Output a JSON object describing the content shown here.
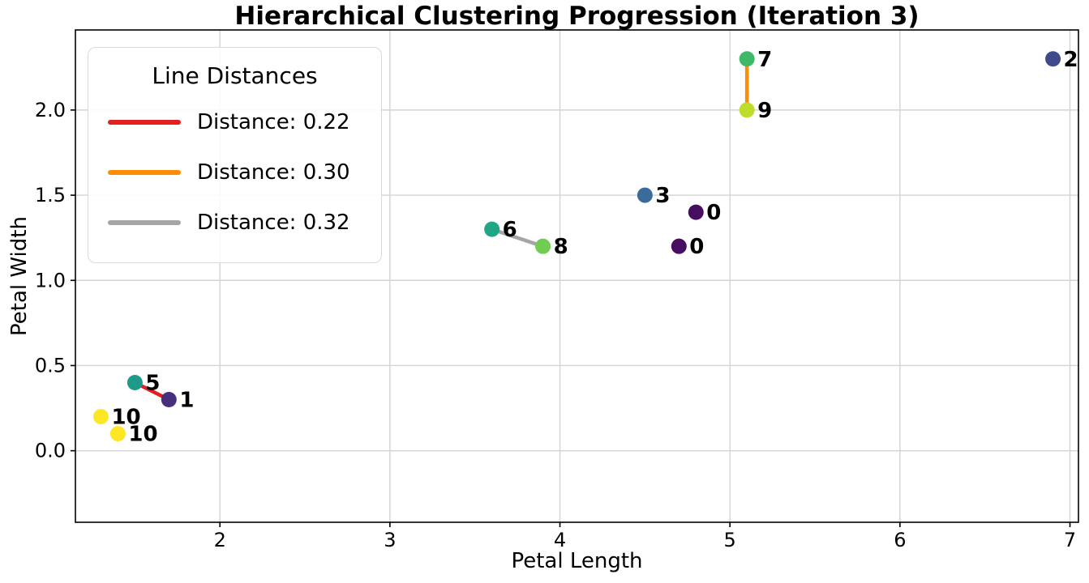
{
  "chart_data": {
    "type": "scatter",
    "title": "Hierarchical Clustering Progression (Iteration 3)",
    "xlabel": "Petal Length",
    "ylabel": "Petal Width",
    "xlim": [
      1.15,
      7.05
    ],
    "ylim": [
      -0.42,
      2.47
    ],
    "grid": true,
    "grid_color": "#d3d3d3",
    "axis_color": "#000000",
    "xticks": [
      {
        "value": 2,
        "label": "2"
      },
      {
        "value": 3,
        "label": "3"
      },
      {
        "value": 4,
        "label": "4"
      },
      {
        "value": 5,
        "label": "5"
      },
      {
        "value": 6,
        "label": "6"
      },
      {
        "value": 7,
        "label": "7"
      }
    ],
    "yticks": [
      {
        "value": 0.0,
        "label": "0.0"
      },
      {
        "value": 0.5,
        "label": "0.5"
      },
      {
        "value": 1.0,
        "label": "1.0"
      },
      {
        "value": 1.5,
        "label": "1.5"
      },
      {
        "value": 2.0,
        "label": "2.0"
      }
    ],
    "points": [
      {
        "label": "0",
        "x": 4.8,
        "y": 1.4,
        "color": "#470d60"
      },
      {
        "label": "0",
        "x": 4.7,
        "y": 1.2,
        "color": "#470d60"
      },
      {
        "label": "1",
        "x": 1.7,
        "y": 0.3,
        "color": "#46307e"
      },
      {
        "label": "2",
        "x": 6.9,
        "y": 2.3,
        "color": "#3f4a8c"
      },
      {
        "label": "3",
        "x": 4.5,
        "y": 1.5,
        "color": "#3a6c9a"
      },
      {
        "label": "5",
        "x": 1.5,
        "y": 0.4,
        "color": "#1f998a"
      },
      {
        "label": "6",
        "x": 3.6,
        "y": 1.3,
        "color": "#20a585"
      },
      {
        "label": "7",
        "x": 5.1,
        "y": 2.3,
        "color": "#3fb868"
      },
      {
        "label": "8",
        "x": 3.9,
        "y": 1.2,
        "color": "#70cc52"
      },
      {
        "label": "9",
        "x": 5.1,
        "y": 2.0,
        "color": "#bcdd2c"
      },
      {
        "label": "10",
        "x": 1.3,
        "y": 0.2,
        "color": "#fde725"
      },
      {
        "label": "10",
        "x": 1.4,
        "y": 0.1,
        "color": "#fde725"
      }
    ],
    "lines": [
      {
        "label": "Distance: 0.22",
        "color": "#e12120",
        "x1": 1.5,
        "y1": 0.4,
        "x2": 1.7,
        "y2": 0.3
      },
      {
        "label": "Distance: 0.30",
        "color": "#ff8c05",
        "x1": 5.1,
        "y1": 2.3,
        "x2": 5.1,
        "y2": 2.0
      },
      {
        "label": "Distance: 0.32",
        "color": "#a5a5a5",
        "x1": 3.6,
        "y1": 1.3,
        "x2": 3.9,
        "y2": 1.2
      }
    ],
    "legend": {
      "title": "Line Distances",
      "position": "upper left",
      "entries": [
        {
          "label": "Distance: 0.22",
          "color": "#e12120"
        },
        {
          "label": "Distance: 0.30",
          "color": "#ff8c05"
        },
        {
          "label": "Distance: 0.32",
          "color": "#a5a5a5"
        }
      ]
    }
  }
}
